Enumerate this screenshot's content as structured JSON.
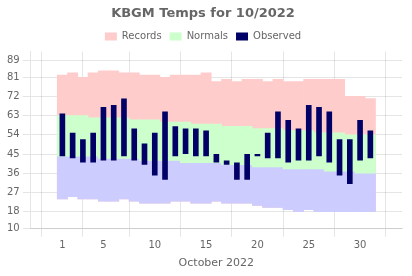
{
  "chart_data": {
    "type": "bar",
    "title": "KBGM Temps for 10/2022",
    "xlabel": "October 2022",
    "x": [
      1,
      2,
      3,
      4,
      5,
      6,
      7,
      8,
      9,
      10,
      11,
      12,
      13,
      14,
      15,
      16,
      17,
      18,
      19,
      20,
      21,
      22,
      23,
      24,
      25,
      26,
      27,
      28,
      29,
      30,
      31
    ],
    "xlim": [
      0.5,
      31.5
    ],
    "xticks": [
      1,
      5,
      10,
      15,
      20,
      25,
      30
    ],
    "ylim": [
      10,
      93
    ],
    "yticks": [
      10,
      18,
      27,
      36,
      45,
      54,
      63,
      72,
      81,
      89
    ],
    "grid": true,
    "legend": "top",
    "series": [
      {
        "name": "Records",
        "color": "#ffcccc",
        "low": [
          24,
          25,
          24,
          24,
          23,
          23,
          24,
          23,
          22,
          22,
          22,
          23,
          23,
          22,
          22,
          23,
          22,
          22,
          22,
          21,
          20,
          20,
          19,
          18,
          19,
          18,
          18,
          18,
          18,
          18,
          18
        ],
        "high": [
          82,
          83,
          81,
          83,
          84,
          84,
          83,
          83,
          82,
          82,
          81,
          82,
          82,
          82,
          83,
          79,
          80,
          79,
          80,
          80,
          79,
          80,
          79,
          79,
          80,
          80,
          80,
          80,
          72,
          72,
          71
        ]
      },
      {
        "color": "#ccccff",
        "low": [
          24,
          25,
          24,
          24,
          23,
          23,
          24,
          23,
          22,
          22,
          22,
          23,
          23,
          22,
          22,
          23,
          22,
          22,
          22,
          21,
          20,
          20,
          19,
          18,
          19,
          18,
          18,
          18,
          18,
          18,
          18
        ],
        "high": [
          44,
          44,
          44,
          44,
          43,
          43,
          43,
          43,
          42,
          42,
          42,
          42,
          41,
          41,
          41,
          41,
          40,
          40,
          40,
          39,
          39,
          39,
          38,
          38,
          38,
          38,
          37,
          37,
          37,
          36,
          36
        ]
      },
      {
        "name": "Normals",
        "color": "#ccffcc",
        "low": [
          44,
          44,
          44,
          44,
          43,
          43,
          43,
          43,
          42,
          42,
          42,
          42,
          41,
          41,
          41,
          41,
          40,
          40,
          40,
          39,
          39,
          39,
          38,
          38,
          38,
          38,
          37,
          37,
          37,
          36,
          36
        ],
        "high": [
          63,
          63,
          63,
          62,
          62,
          62,
          62,
          61,
          61,
          61,
          60,
          60,
          60,
          59,
          59,
          59,
          58,
          58,
          58,
          57,
          57,
          57,
          56,
          56,
          56,
          55,
          55,
          55,
          54,
          54,
          54
        ]
      },
      {
        "name": "Observed",
        "color": "#000066",
        "low": [
          44,
          43,
          41,
          41,
          42,
          42,
          44,
          42,
          40,
          35,
          33,
          44,
          45,
          44,
          44,
          41,
          40,
          33,
          33,
          44,
          43,
          43,
          41,
          42,
          42,
          44,
          41,
          35,
          31,
          42,
          43
        ],
        "high": [
          64,
          55,
          52,
          55,
          67,
          68,
          71,
          57,
          50,
          55,
          65,
          58,
          57,
          57,
          56,
          45,
          42,
          41,
          45,
          45,
          55,
          65,
          61,
          57,
          68,
          67,
          65,
          52,
          52,
          61,
          56
        ]
      }
    ]
  }
}
